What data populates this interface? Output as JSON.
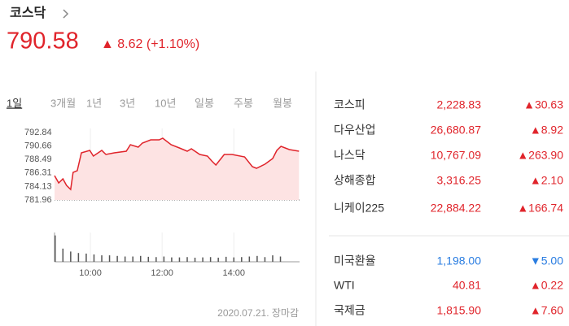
{
  "header": {
    "title": "코스닥",
    "value": "790.58",
    "change": "▲ 8.62 (+1.10%)",
    "color": "#e0242b"
  },
  "periods": [
    "1일",
    "3개월",
    "1년",
    "3년",
    "10년",
    "일봉",
    "주봉",
    "월봉"
  ],
  "chart": {
    "type": "line",
    "color": "#e0242b",
    "fill": "#fde3e3",
    "xlim": [
      540,
      950
    ],
    "ylim": [
      781.96,
      792.84
    ],
    "yticks": [
      792.84,
      790.66,
      788.49,
      786.31,
      784.13,
      781.96
    ],
    "xticks": [
      {
        "value": 600,
        "label": "10:00"
      },
      {
        "value": 720,
        "label": "12:00"
      },
      {
        "value": 840,
        "label": "14:00"
      }
    ],
    "x": [
      540,
      547,
      554,
      560,
      567,
      571,
      578,
      585,
      599,
      605,
      619,
      626,
      640,
      660,
      667,
      680,
      687,
      701,
      715,
      721,
      735,
      749,
      762,
      769,
      783,
      796,
      803,
      810,
      824,
      837,
      858,
      871,
      878,
      892,
      905,
      912,
      919,
      933,
      949
    ],
    "values": [
      785.89,
      784.71,
      785.37,
      784.32,
      783.66,
      786.42,
      786.68,
      789.56,
      789.96,
      789.04,
      789.96,
      789.3,
      789.56,
      789.83,
      790.87,
      790.48,
      791.14,
      791.66,
      791.66,
      791.92,
      790.87,
      790.35,
      789.83,
      790.22,
      789.3,
      789.04,
      788.25,
      787.6,
      789.3,
      789.3,
      788.91,
      787.33,
      787.07,
      787.73,
      788.64,
      789.96,
      790.61,
      790.09,
      789.83
    ],
    "volume": {
      "ylim": [
        0,
        100
      ],
      "color": "#555555",
      "x": [
        540,
        553,
        566,
        579,
        592,
        605,
        618,
        631,
        644,
        657,
        670,
        683,
        696,
        709,
        722,
        735,
        748,
        761,
        774,
        787,
        800,
        813,
        826,
        839,
        852,
        865,
        878,
        891,
        904,
        917
      ],
      "values": [
        90,
        45,
        35,
        30,
        28,
        25,
        22,
        22,
        20,
        18,
        18,
        20,
        17,
        16,
        18,
        15,
        15,
        16,
        14,
        15,
        16,
        14,
        17,
        15,
        16,
        18,
        20,
        16,
        22,
        18
      ]
    }
  },
  "date": "2020.07.21. 장마감",
  "markets": [
    {
      "name": "코스피",
      "value": "2,228.83",
      "change": "▲30.63",
      "color": "#e0242b"
    },
    {
      "name": "다우산업",
      "value": "26,680.87",
      "change": "▲8.92",
      "color": "#e0242b"
    },
    {
      "name": "나스닥",
      "value": "10,767.09",
      "change": "▲263.90",
      "color": "#e0242b"
    },
    {
      "name": "상해종합",
      "value": "3,316.25",
      "change": "▲2.10",
      "color": "#e0242b"
    },
    {
      "name": "니케이225",
      "value": "22,884.22",
      "change": "▲166.74",
      "color": "#e0242b"
    }
  ],
  "exchange": [
    {
      "name": "미국환율",
      "value": "1,198.00",
      "change": "▼5.00",
      "color": "#2a7de1"
    },
    {
      "name": "WTI",
      "value": "40.81",
      "change": "▲0.22",
      "color": "#e0242b"
    },
    {
      "name": "국제금",
      "value": "1,815.90",
      "change": "▲7.60",
      "color": "#e0242b"
    }
  ]
}
